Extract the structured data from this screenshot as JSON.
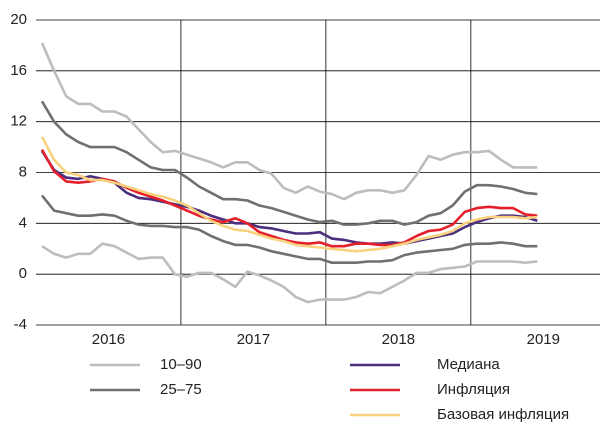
{
  "chart_data": {
    "type": "line",
    "categories": [
      null,
      null,
      null,
      null,
      null,
      null,
      null,
      null,
      null,
      null,
      null,
      null,
      null,
      null,
      null,
      null,
      null,
      null,
      null,
      null,
      null,
      null,
      null,
      null,
      null,
      null,
      null,
      null,
      null,
      null,
      null,
      null,
      null,
      null,
      null,
      null,
      null,
      null,
      null,
      null,
      null,
      null
    ],
    "year_labels": [
      "2016",
      "2017",
      "2018",
      "2019"
    ],
    "ylim": [
      -4,
      20
    ],
    "yticks": [
      -4,
      0,
      4,
      8,
      12,
      16,
      20
    ],
    "grid": true,
    "series": [
      {
        "name": "10–90",
        "color": "#bdbdbd",
        "upper": [
          18.2,
          16,
          14,
          13.4,
          13.4,
          12.8,
          12.8,
          12.4,
          11.4,
          10.4,
          9.6,
          9.7,
          9.4,
          9.1,
          8.8,
          8.4,
          8.8,
          8.8,
          8.2,
          7.9,
          6.8,
          6.4,
          6.9,
          6.5,
          6.3,
          5.9,
          6.4,
          6.6,
          6.6,
          6.4,
          6.6,
          7.8,
          9.3,
          9.0,
          9.4,
          9.6,
          9.6,
          9.7,
          9.0,
          8.4,
          8.4,
          8.4
        ],
        "lower": [
          2.2,
          1.6,
          1.3,
          1.6,
          1.6,
          2.4,
          2.2,
          1.7,
          1.2,
          1.3,
          1.3,
          0.0,
          -0.2,
          0.1,
          0.1,
          -0.4,
          -1.0,
          0.2,
          -0.1,
          -0.5,
          -1.0,
          -1.8,
          -2.2,
          -2.0,
          -2.0,
          -2.0,
          -1.8,
          -1.4,
          -1.5,
          -1.0,
          -0.5,
          0.1,
          0.1,
          0.4,
          0.5,
          0.6,
          1.0,
          1.0,
          1.0,
          1.0,
          0.9,
          1.0
        ]
      },
      {
        "name": "25–75",
        "color": "#707070",
        "upper": [
          13.6,
          12.0,
          11.0,
          10.4,
          10.0,
          10.0,
          10.0,
          9.6,
          9.0,
          8.4,
          8.2,
          8.2,
          7.6,
          6.9,
          6.4,
          5.9,
          5.9,
          5.8,
          5.4,
          5.2,
          4.9,
          4.6,
          4.3,
          4.1,
          4.2,
          3.9,
          3.9,
          4.0,
          4.2,
          4.2,
          3.9,
          4.1,
          4.6,
          4.8,
          5.4,
          6.5,
          7.0,
          7.0,
          6.9,
          6.7,
          6.4,
          6.3
        ],
        "lower": [
          6.2,
          5.0,
          4.8,
          4.6,
          4.6,
          4.7,
          4.6,
          4.2,
          3.9,
          3.8,
          3.8,
          3.7,
          3.7,
          3.5,
          3.0,
          2.6,
          2.3,
          2.3,
          2.1,
          1.8,
          1.6,
          1.4,
          1.2,
          1.2,
          0.9,
          0.9,
          0.9,
          1.0,
          1.0,
          1.1,
          1.5,
          1.7,
          1.8,
          1.9,
          2.0,
          2.3,
          2.4,
          2.4,
          2.5,
          2.4,
          2.2,
          2.2
        ]
      },
      {
        "name": "Медиана",
        "color": "#4b2e7d",
        "values": [
          9.7,
          8.2,
          7.6,
          7.5,
          7.7,
          7.5,
          7.2,
          6.4,
          6.0,
          5.9,
          5.7,
          5.5,
          5.3,
          5.0,
          4.6,
          4.3,
          4.0,
          4.0,
          3.7,
          3.6,
          3.4,
          3.2,
          3.2,
          3.3,
          2.8,
          2.7,
          2.5,
          2.4,
          2.4,
          2.5,
          2.4,
          2.6,
          2.8,
          3.0,
          3.2,
          3.7,
          4.1,
          4.4,
          4.6,
          4.6,
          4.5,
          4.2
        ]
      },
      {
        "name": "Инфляция",
        "color": "#e3202b",
        "values": [
          9.8,
          8.1,
          7.3,
          7.2,
          7.3,
          7.5,
          7.3,
          6.8,
          6.4,
          6.1,
          5.8,
          5.4,
          5.0,
          4.6,
          4.3,
          4.1,
          4.4,
          4.0,
          3.3,
          3.0,
          2.7,
          2.5,
          2.4,
          2.5,
          2.2,
          2.2,
          2.4,
          2.4,
          2.3,
          2.3,
          2.5,
          3.0,
          3.4,
          3.5,
          3.9,
          4.9,
          5.2,
          5.3,
          5.2,
          5.2,
          4.7,
          4.6
        ]
      },
      {
        "name": "Базовая инфляция",
        "color": "#f9d27f",
        "values": [
          10.8,
          9.0,
          8.0,
          7.8,
          7.4,
          7.4,
          7.2,
          6.9,
          6.6,
          6.3,
          6.1,
          5.8,
          5.4,
          4.8,
          4.2,
          3.8,
          3.5,
          3.4,
          3.1,
          2.8,
          2.6,
          2.3,
          2.2,
          2.1,
          2.0,
          1.9,
          1.8,
          1.9,
          2.0,
          2.2,
          2.4,
          2.7,
          2.9,
          3.1,
          3.4,
          4.0,
          4.3,
          4.5,
          4.5,
          4.5,
          4.4,
          4.5
        ]
      }
    ]
  }
}
